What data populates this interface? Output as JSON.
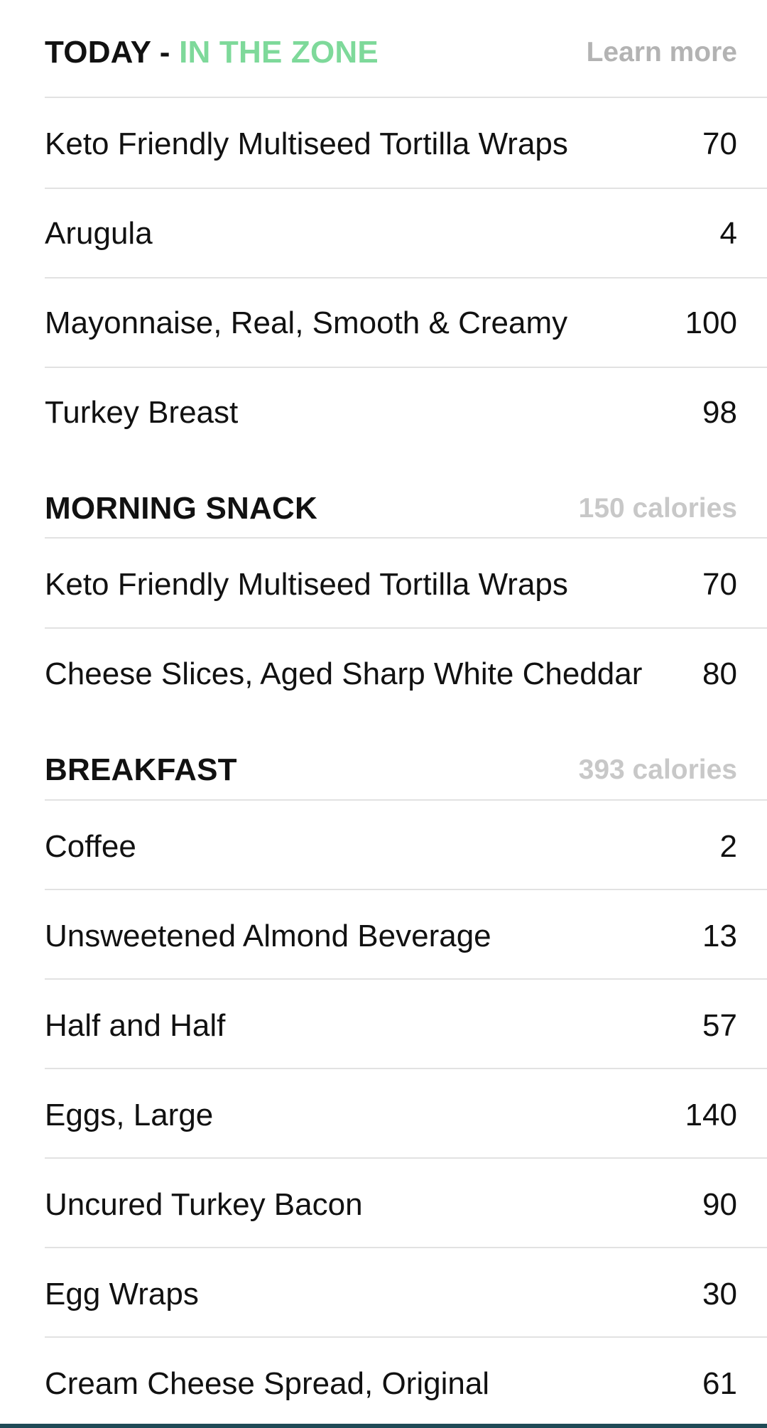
{
  "today": {
    "label": "TODAY - ",
    "zone": "IN THE ZONE",
    "link": "Learn more",
    "items": [
      {
        "name": "Keto Friendly Multiseed Tortilla Wraps",
        "calories": "70"
      },
      {
        "name": "Arugula",
        "calories": "4"
      },
      {
        "name": "Mayonnaise, Real, Smooth & Creamy",
        "calories": "100"
      },
      {
        "name": "Turkey Breast",
        "calories": "98"
      }
    ]
  },
  "morning_snack": {
    "title": "MORNING SNACK",
    "calories": "150 calories",
    "items": [
      {
        "name": "Keto Friendly Multiseed Tortilla Wraps",
        "calories": "70"
      },
      {
        "name": "Cheese Slices, Aged Sharp White Cheddar",
        "calories": "80"
      }
    ]
  },
  "breakfast": {
    "title": "BREAKFAST",
    "calories": "393 calories",
    "items": [
      {
        "name": "Coffee",
        "calories": "2"
      },
      {
        "name": "Unsweetened Almond Beverage",
        "calories": "13"
      },
      {
        "name": "Half and Half",
        "calories": "57"
      },
      {
        "name": "Eggs, Large",
        "calories": "140"
      },
      {
        "name": "Uncured Turkey Bacon",
        "calories": "90"
      },
      {
        "name": "Egg Wraps",
        "calories": "30"
      },
      {
        "name": "Cream Cheese Spread, Original",
        "calories": "61"
      }
    ]
  },
  "colors": {
    "zone_green": "#7ed99a",
    "muted_gray": "#c8c8c8",
    "divider": "#e2e2e2",
    "bottom_bar": "#1f4a56"
  }
}
